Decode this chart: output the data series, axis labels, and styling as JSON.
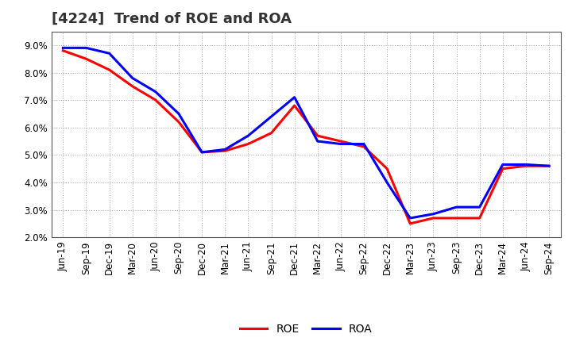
{
  "title": "[4224]  Trend of ROE and ROA",
  "x_labels": [
    "Jun-19",
    "Sep-19",
    "Dec-19",
    "Mar-20",
    "Jun-20",
    "Sep-20",
    "Dec-20",
    "Mar-21",
    "Jun-21",
    "Sep-21",
    "Dec-21",
    "Mar-22",
    "Jun-22",
    "Sep-22",
    "Dec-22",
    "Mar-23",
    "Jun-23",
    "Sep-23",
    "Dec-23",
    "Mar-24",
    "Jun-24",
    "Sep-24"
  ],
  "roe": [
    8.8,
    8.5,
    8.1,
    7.5,
    7.0,
    6.2,
    5.1,
    5.15,
    5.4,
    5.8,
    6.8,
    5.7,
    5.5,
    5.3,
    4.5,
    2.5,
    2.7,
    2.7,
    2.7,
    4.5,
    4.6,
    4.6
  ],
  "roa": [
    8.9,
    8.9,
    8.7,
    7.8,
    7.3,
    6.5,
    5.1,
    5.2,
    5.7,
    6.4,
    7.1,
    5.5,
    5.4,
    5.4,
    4.0,
    2.7,
    2.85,
    3.1,
    3.1,
    4.65,
    4.65,
    4.6
  ],
  "roe_color": "#ff0000",
  "roa_color": "#0000ff",
  "background_color": "#ffffff",
  "grid_color": "#999999",
  "ylim": [
    2.0,
    9.5
  ],
  "yticks": [
    2.0,
    3.0,
    4.0,
    5.0,
    6.0,
    7.0,
    8.0,
    9.0
  ],
  "line_width": 2.2,
  "title_fontsize": 13,
  "tick_fontsize": 8.5,
  "legend_fontsize": 10
}
